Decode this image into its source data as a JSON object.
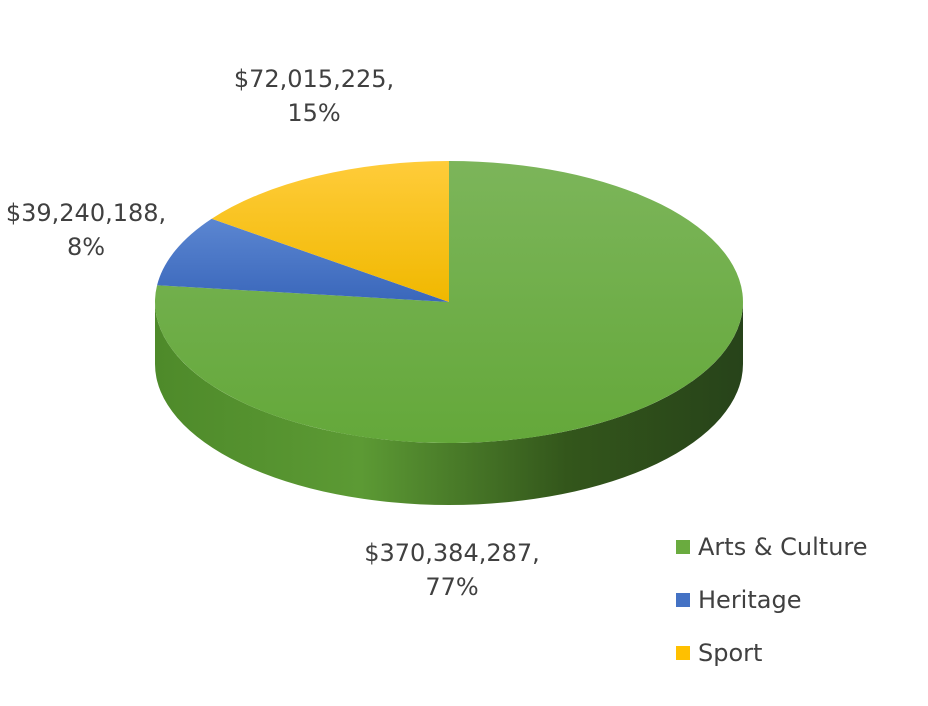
{
  "chart_data": {
    "type": "pie",
    "style": "3d",
    "slices": [
      {
        "category": "Arts & Culture",
        "value": 370384287,
        "value_label": "$370,384,287,",
        "percent_label": "77%",
        "color": "#6aab3f"
      },
      {
        "category": "Heritage",
        "value": 39240188,
        "value_label": "$39,240,188,",
        "percent_label": "8%",
        "color": "#4472c4"
      },
      {
        "category": "Sport",
        "value": 72015225,
        "value_label": "$72,015,225,",
        "percent_label": "15%",
        "color": "#ffc000"
      }
    ],
    "legend_position": "bottom-right"
  }
}
